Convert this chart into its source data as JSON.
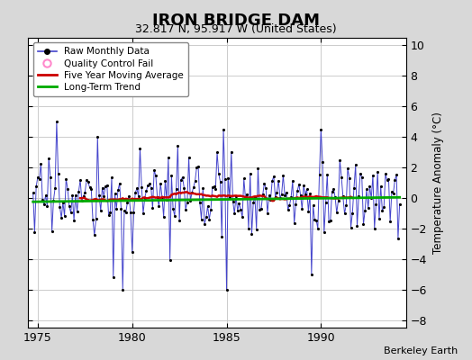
{
  "title": "IRON BRIDGE DAM",
  "subtitle": "32.817 N, 95.917 W (United States)",
  "ylabel": "Temperature Anomaly (°C)",
  "credit": "Berkeley Earth",
  "xlim": [
    1974.5,
    1994.5
  ],
  "ylim": [
    -8.5,
    10.5
  ],
  "yticks": [
    -8,
    -6,
    -4,
    -2,
    0,
    2,
    4,
    6,
    8,
    10
  ],
  "xticks": [
    1975,
    1980,
    1985,
    1990
  ],
  "bg_color": "#d8d8d8",
  "plot_bg_color": "#ffffff",
  "raw_line_color": "#4444cc",
  "raw_dot_color": "#000000",
  "moving_avg_color": "#cc0000",
  "trend_color": "#00aa00",
  "qc_fail_color": "#ff88cc",
  "legend_loc": "upper left",
  "seed": 17,
  "start_year": 1974.75,
  "end_year": 1994.25,
  "noise_std": 1.2,
  "trend_slope": 0.015,
  "trend_intercept": -0.25
}
